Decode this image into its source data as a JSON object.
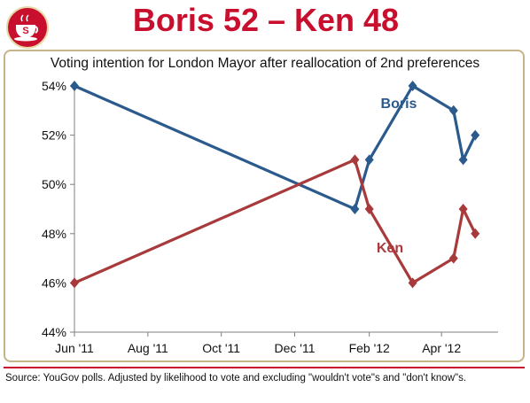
{
  "header": {
    "title": "Boris 52 – Ken 48",
    "logo_icon": "teacup-logo-icon",
    "logo_letter": "S"
  },
  "footer": {
    "source": "Source: YouGov polls. Adjusted by likelihood to vote and excluding \"wouldn't vote\"s and \"don't know\"s."
  },
  "colors": {
    "headline": "#c8102e",
    "boris": "#2b5a8c",
    "ken": "#a83a3c",
    "frame": "#c5b48a",
    "rule": "#c8102e"
  },
  "chart_data": {
    "type": "line",
    "title": "Voting intention for London Mayor after reallocation of 2nd preferences",
    "xlabel": "",
    "ylabel": "",
    "ylim": [
      44,
      54
    ],
    "y_ticks": [
      44,
      46,
      48,
      50,
      52,
      54
    ],
    "y_tick_suffix": "%",
    "x_range": [
      "2011-06-01",
      "2012-05-18"
    ],
    "x_ticks": [
      {
        "date": "2011-06-01",
        "label": "Jun '11"
      },
      {
        "date": "2011-08-01",
        "label": "Aug '11"
      },
      {
        "date": "2011-10-01",
        "label": "Oct '11"
      },
      {
        "date": "2011-12-01",
        "label": "Dec '11"
      },
      {
        "date": "2012-02-01",
        "label": "Feb '12"
      },
      {
        "date": "2012-04-01",
        "label": "Apr '12"
      }
    ],
    "grid": false,
    "legend": "inline labels",
    "series": [
      {
        "name": "Boris",
        "color": "#2b5a8c",
        "points": [
          {
            "x": "2011-06-01",
            "y": 54
          },
          {
            "x": "2012-01-20",
            "y": 49
          },
          {
            "x": "2012-02-01",
            "y": 51
          },
          {
            "x": "2012-03-08",
            "y": 54
          },
          {
            "x": "2012-04-11",
            "y": 53
          },
          {
            "x": "2012-04-19",
            "y": 51
          },
          {
            "x": "2012-04-29",
            "y": 52
          }
        ]
      },
      {
        "name": "Ken",
        "color": "#a83a3c",
        "points": [
          {
            "x": "2011-06-01",
            "y": 46
          },
          {
            "x": "2012-01-20",
            "y": 51
          },
          {
            "x": "2012-02-01",
            "y": 49
          },
          {
            "x": "2012-03-08",
            "y": 46
          },
          {
            "x": "2012-04-11",
            "y": 47
          },
          {
            "x": "2012-04-19",
            "y": 49
          },
          {
            "x": "2012-04-29",
            "y": 48
          }
        ]
      }
    ]
  }
}
